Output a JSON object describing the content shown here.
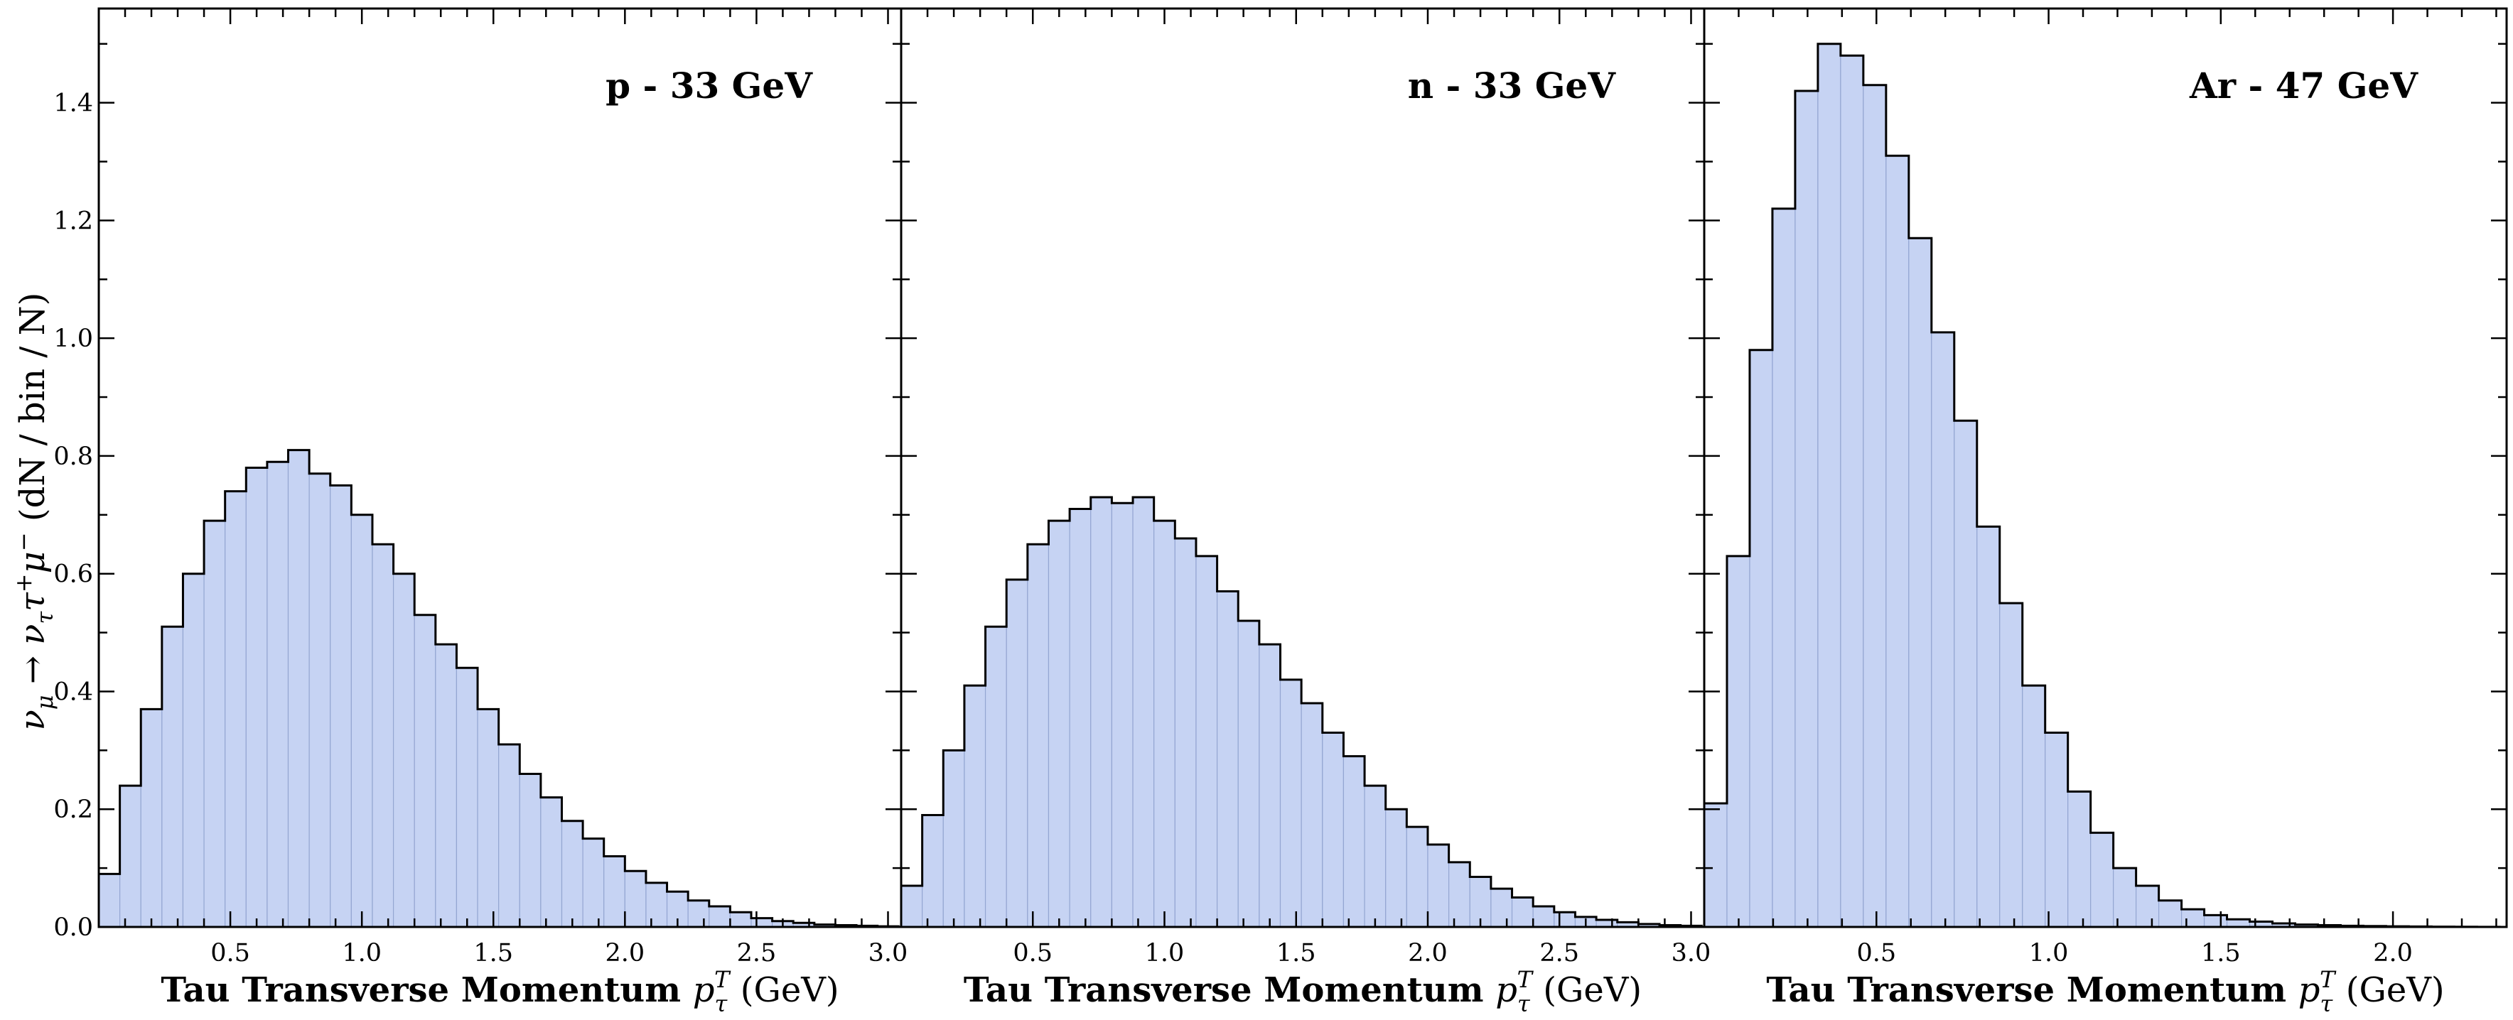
{
  "chart_data": [
    {
      "type": "bar",
      "title": "p - 33 GeV",
      "xlabel": "Tau Transverse Momentum",
      "xlabel_unit": "(GeV)",
      "xlim": [
        0,
        3.05
      ],
      "ylim": [
        0,
        1.56
      ],
      "xticks": [
        "0.5",
        "1.0",
        "1.5",
        "2.0",
        "2.5",
        "3.0"
      ],
      "bin_width": 0.08,
      "values": [
        0.09,
        0.24,
        0.37,
        0.51,
        0.6,
        0.69,
        0.74,
        0.78,
        0.79,
        0.81,
        0.77,
        0.75,
        0.7,
        0.65,
        0.6,
        0.53,
        0.48,
        0.44,
        0.37,
        0.31,
        0.26,
        0.22,
        0.18,
        0.15,
        0.12,
        0.095,
        0.075,
        0.06,
        0.045,
        0.035,
        0.025,
        0.015,
        0.01,
        0.007,
        0.004,
        0.003,
        0.002,
        0.001
      ]
    },
    {
      "type": "bar",
      "title": "n - 33 GeV",
      "xlabel": "Tau Transverse Momentum",
      "xlabel_unit": "(GeV)",
      "xlim": [
        0,
        3.05
      ],
      "ylim": [
        0,
        1.56
      ],
      "xticks": [
        "0.5",
        "1.0",
        "1.5",
        "2.0",
        "2.5",
        "3.0"
      ],
      "bin_width": 0.08,
      "values": [
        0.07,
        0.19,
        0.3,
        0.41,
        0.51,
        0.59,
        0.65,
        0.69,
        0.71,
        0.73,
        0.72,
        0.73,
        0.69,
        0.66,
        0.63,
        0.57,
        0.52,
        0.48,
        0.42,
        0.38,
        0.33,
        0.29,
        0.24,
        0.2,
        0.17,
        0.14,
        0.11,
        0.085,
        0.065,
        0.05,
        0.035,
        0.025,
        0.017,
        0.012,
        0.008,
        0.005,
        0.003,
        0.002
      ]
    },
    {
      "type": "bar",
      "title": "Ar - 47 GeV",
      "xlabel": "Tau Transverse Momentum",
      "xlabel_unit": "(GeV)",
      "xlim": [
        0,
        2.33
      ],
      "ylim": [
        0,
        1.56
      ],
      "xticks": [
        "0.5",
        "1.0",
        "1.5",
        "2.0"
      ],
      "bin_width": 0.066,
      "values": [
        0.21,
        0.63,
        0.98,
        1.22,
        1.42,
        1.5,
        1.48,
        1.43,
        1.31,
        1.17,
        1.01,
        0.86,
        0.68,
        0.55,
        0.41,
        0.33,
        0.23,
        0.16,
        0.1,
        0.07,
        0.045,
        0.03,
        0.02,
        0.013,
        0.009,
        0.006,
        0.004,
        0.003,
        0.002,
        0.0015,
        0.001,
        0.0008,
        0.0005,
        0.0003,
        0.0002
      ]
    }
  ],
  "axes": {
    "yticks": [
      "0.0",
      "0.2",
      "0.4",
      "0.6",
      "0.8",
      "1.0",
      "1.2",
      "1.4"
    ],
    "yticks_values": [
      0,
      0.2,
      0.4,
      0.6,
      0.8,
      1.0,
      1.2,
      1.4
    ]
  },
  "colors": {
    "fill": "#c6d3f3",
    "bin_edge": "#94a6d2",
    "outline": "#000000"
  }
}
